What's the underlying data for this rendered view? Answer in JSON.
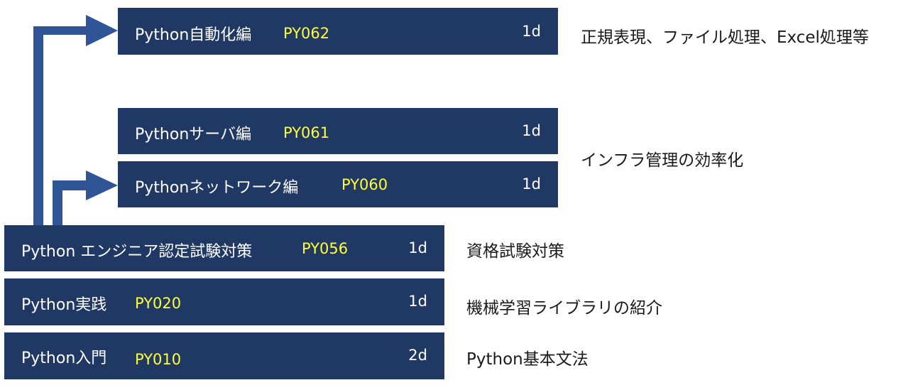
{
  "colors": {
    "box": "#203864",
    "code": "#ffff33",
    "text": "#ffffff",
    "arrow": "#2f5597"
  },
  "courses": [
    {
      "id": "py062",
      "name": "Python自動化編",
      "code": "PY062",
      "duration": "1d"
    },
    {
      "id": "py061",
      "name": "Pythonサーバ編",
      "code": "PY061",
      "duration": "1d"
    },
    {
      "id": "py060",
      "name": "Pythonネットワーク編",
      "code": "PY060",
      "duration": "1d"
    },
    {
      "id": "py056",
      "name": "Python エンジニア認定試験対策",
      "code": "PY056",
      "duration": "1d"
    },
    {
      "id": "py020",
      "name": "Python実践",
      "code": "PY020",
      "duration": "1d"
    },
    {
      "id": "py010",
      "name": "Python入門",
      "code": "PY010",
      "duration": "2d"
    }
  ],
  "descriptions": [
    "正規表現、ファイル処理、Excel処理等",
    "インフラ管理の効率化",
    "資格試験対策",
    "機械学習ライブラリの紹介",
    "Python基本文法"
  ],
  "connectors": [
    {
      "from": "py056",
      "to": "py062",
      "icon": "arrow-right-icon"
    },
    {
      "from": "py056",
      "to": "py060",
      "icon": "arrow-right-icon"
    }
  ]
}
